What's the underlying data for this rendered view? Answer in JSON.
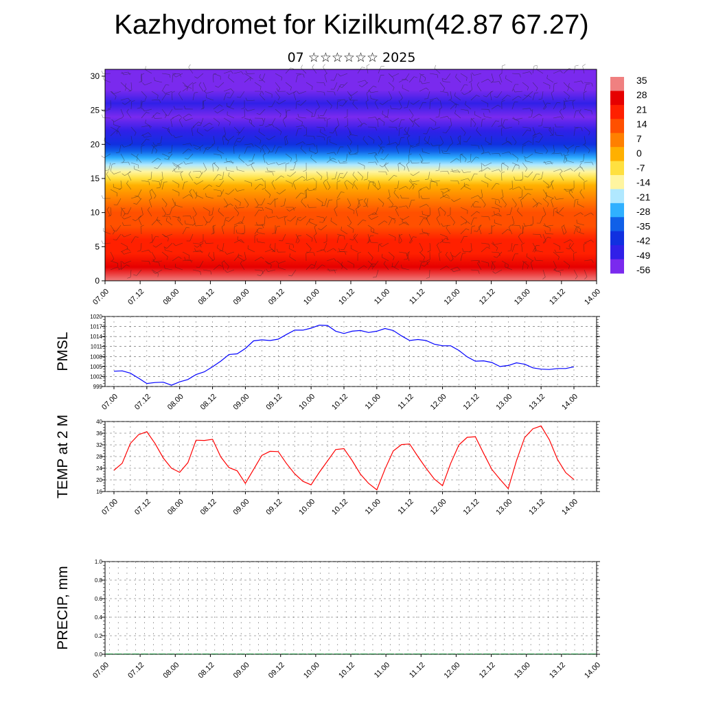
{
  "title": "Kazhydromet for Kizilkum(42.87 67.27)",
  "subtitle": "07 ☆☆☆☆☆☆ 2025",
  "chart_data": [
    {
      "type": "heatmap",
      "description_vertical_axis": "",
      "y_ticks": [
        "0",
        "5",
        "10",
        "15",
        "20",
        "25",
        "30"
      ],
      "ylim": [
        0,
        31
      ],
      "x_ticks": [
        "07.00",
        "07.12",
        "08.00",
        "08.12",
        "09.00",
        "09.12",
        "10.00",
        "10.12",
        "11.00",
        "11.12",
        "12.00",
        "12.12",
        "13.00",
        "13.12",
        "14.00"
      ],
      "colorbar_ticks": [
        "35",
        "28",
        "21",
        "14",
        "7",
        "0",
        "-7",
        "-14",
        "-21",
        "-28",
        "-35",
        "-42",
        "-49",
        "-56"
      ],
      "colorbar_colors": [
        "#f08080",
        "#e60000",
        "#ff2000",
        "#ff5000",
        "#ff8000",
        "#ffb000",
        "#ffe040",
        "#fff5a0",
        "#b0e8ff",
        "#30b0ff",
        "#1060e8",
        "#1030e0",
        "#3020e8",
        "#7a2aee"
      ],
      "temperature_by_level": {
        "levels": [
          0,
          2,
          4,
          6,
          8,
          10,
          12,
          14,
          15,
          16,
          17,
          18,
          19,
          20,
          22,
          24,
          26,
          28,
          31
        ],
        "values": [
          32,
          28,
          24,
          20,
          16,
          12,
          8,
          2,
          -6,
          -14,
          -21,
          -28,
          -35,
          -42,
          -50,
          -56,
          -52,
          -58,
          -60
        ]
      },
      "wind_field": "barbs"
    },
    {
      "type": "line",
      "ylabel": "PMSL",
      "y_ticks": [
        "999",
        "1002",
        "1005",
        "1008",
        "1011",
        "1014",
        "1017",
        "1020"
      ],
      "ylim": [
        999,
        1020
      ],
      "x_ticks": [
        "07.00",
        "07.12",
        "08.00",
        "08.12",
        "09.00",
        "09.12",
        "10.00",
        "10.12",
        "11.00",
        "11.12",
        "12.00",
        "12.12",
        "13.00",
        "13.12",
        "14.00"
      ],
      "series": [
        {
          "color": "#0000ff",
          "x_hours": [
            0,
            3,
            6,
            9,
            12,
            15,
            18,
            21,
            24,
            27,
            30,
            33,
            36,
            39,
            42,
            45,
            48,
            51,
            54,
            57,
            60,
            63,
            66,
            69,
            72,
            75,
            78,
            81,
            84,
            87,
            90,
            93,
            96,
            99,
            102,
            105,
            108,
            111,
            114,
            117,
            120,
            123,
            126,
            129,
            132,
            135,
            138,
            141,
            144,
            147,
            150,
            153,
            156,
            159,
            162,
            165,
            168
          ],
          "values": [
            1003.6,
            1003.7,
            1003.0,
            1001.5,
            999.9,
            1000.2,
            1000.3,
            999.4,
            1000.4,
            1001.1,
            1002.6,
            1003.4,
            1004.9,
            1006.6,
            1008.6,
            1008.8,
            1010.4,
            1012.7,
            1013.0,
            1012.8,
            1013.2,
            1014.6,
            1015.9,
            1015.9,
            1016.5,
            1017.4,
            1017.3,
            1015.6,
            1014.9,
            1015.6,
            1015.8,
            1015.2,
            1015.6,
            1016.4,
            1015.8,
            1014.2,
            1012.8,
            1013.1,
            1012.8,
            1011.7,
            1011.2,
            1011.2,
            1009.8,
            1007.9,
            1006.6,
            1006.7,
            1006.2,
            1005.0,
            1005.3,
            1006.1,
            1005.7,
            1004.6,
            1004.2,
            1004.1,
            1004.4,
            1004.4,
            1004.9
          ]
        }
      ]
    },
    {
      "type": "line",
      "ylabel": "TEMP at 2 M",
      "y_ticks": [
        "16",
        "20",
        "24",
        "28",
        "32",
        "36",
        "40"
      ],
      "ylim": [
        16,
        40
      ],
      "x_ticks": [
        "07.00",
        "07.12",
        "08.00",
        "08.12",
        "09.00",
        "09.12",
        "10.00",
        "10.12",
        "11.00",
        "11.12",
        "12.00",
        "12.12",
        "13.00",
        "13.12",
        "14.00"
      ],
      "series": [
        {
          "color": "#ff0000",
          "x_hours": [
            0,
            3,
            6,
            9,
            12,
            15,
            18,
            21,
            24,
            27,
            30,
            33,
            36,
            39,
            42,
            45,
            48,
            51,
            54,
            57,
            60,
            63,
            66,
            69,
            72,
            75,
            78,
            81,
            84,
            87,
            90,
            93,
            96,
            99,
            102,
            105,
            108,
            111,
            114,
            117,
            120,
            123,
            126,
            129,
            132,
            135,
            138,
            141,
            144,
            147,
            150,
            153,
            156,
            159,
            162,
            165,
            168
          ],
          "values": [
            23.3,
            25.7,
            32.5,
            35.5,
            36.5,
            32.5,
            27.5,
            24.0,
            22.6,
            25.9,
            33.6,
            33.5,
            33.9,
            27.9,
            24.2,
            23.1,
            18.8,
            23.6,
            28.4,
            29.8,
            29.7,
            25.6,
            22.1,
            19.5,
            18.3,
            22.6,
            26.5,
            30.4,
            30.7,
            26.6,
            22.0,
            18.8,
            16.6,
            23.7,
            29.9,
            32.1,
            32.3,
            28.0,
            24.0,
            20.3,
            18.0,
            25.7,
            32.0,
            34.6,
            34.8,
            29.1,
            23.6,
            20.2,
            17.0,
            26.6,
            34.5,
            37.5,
            38.5,
            33.8,
            27.0,
            22.5,
            20.1
          ]
        }
      ]
    },
    {
      "type": "bar",
      "ylabel": "PRECIP, mm",
      "y_ticks": [
        "0.0",
        "0.2",
        "0.4",
        "0.6",
        "0.8",
        "1.0"
      ],
      "ylim": [
        0,
        1
      ],
      "x_ticks": [
        "07.00",
        "07.12",
        "08.00",
        "08.12",
        "09.00",
        "09.12",
        "10.00",
        "10.12",
        "11.00",
        "11.12",
        "12.00",
        "12.12",
        "13.00",
        "13.12",
        "14.00"
      ],
      "values": [
        0,
        0,
        0,
        0,
        0,
        0,
        0,
        0,
        0,
        0,
        0,
        0,
        0,
        0,
        0,
        0,
        0,
        0,
        0,
        0,
        0,
        0,
        0,
        0,
        0,
        0,
        0,
        0,
        0,
        0,
        0,
        0,
        0,
        0,
        0,
        0,
        0,
        0,
        0,
        0,
        0,
        0,
        0,
        0,
        0,
        0,
        0,
        0,
        0,
        0,
        0,
        0,
        0,
        0,
        0,
        0
      ]
    }
  ]
}
